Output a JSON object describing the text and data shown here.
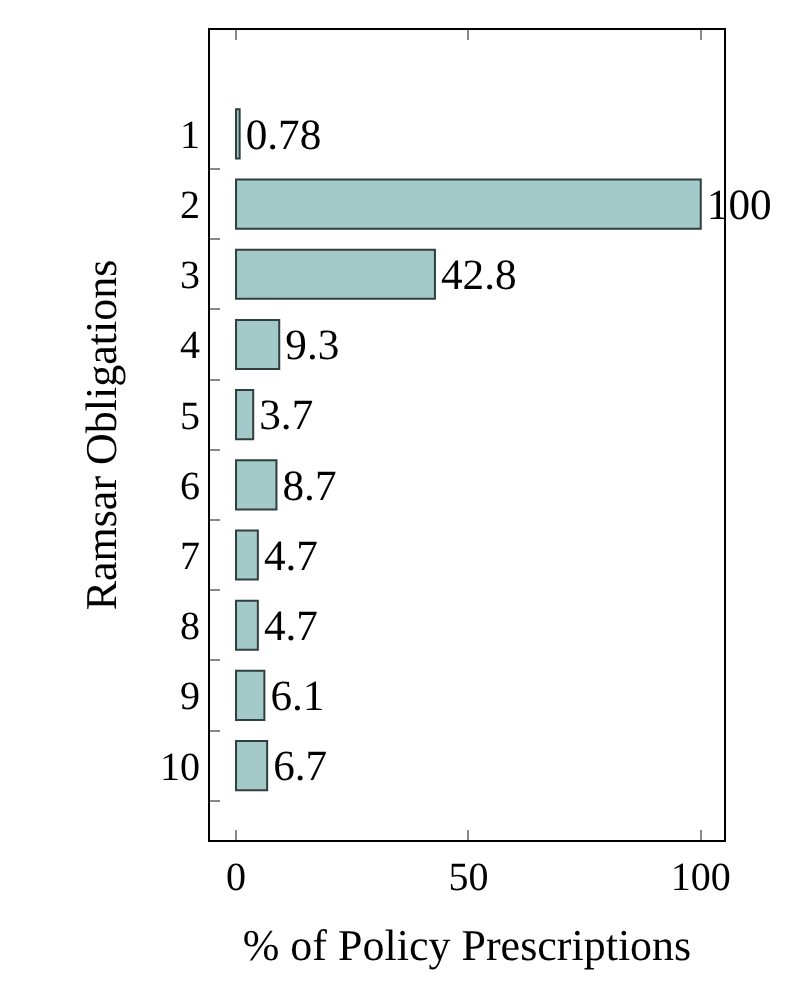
{
  "chart_data": {
    "type": "bar",
    "orientation": "horizontal",
    "xlabel": "% of Policy Prescriptions",
    "ylabel": "Ramsar Obligations",
    "categories": [
      "1",
      "2",
      "3",
      "4",
      "5",
      "6",
      "7",
      "8",
      "9",
      "10"
    ],
    "values": [
      0.78,
      100,
      42.8,
      9.3,
      3.7,
      8.7,
      4.7,
      4.7,
      6.1,
      6.7
    ],
    "color": "#a3c9c9",
    "data_labels": true,
    "xlim": [
      -5.6,
      105
    ],
    "xticks": [
      0,
      50,
      100
    ],
    "legend": false
  }
}
